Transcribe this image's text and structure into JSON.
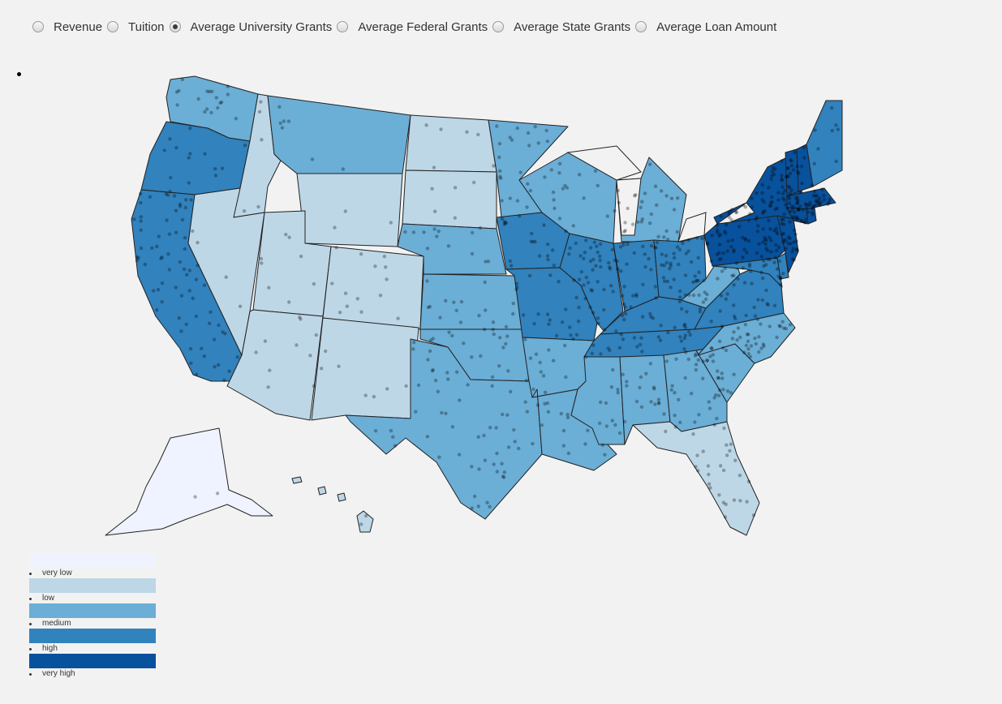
{
  "options": [
    {
      "label": "Revenue",
      "selected": false
    },
    {
      "label": "Tuition",
      "selected": false
    },
    {
      "label": "Average University Grants",
      "selected": true
    },
    {
      "label": "Average Federal Grants",
      "selected": false
    },
    {
      "label": "Average State Grants",
      "selected": false
    },
    {
      "label": "Average Loan Amount",
      "selected": false
    }
  ],
  "legend": [
    {
      "label": "very low",
      "color": "#eff3ff"
    },
    {
      "label": "low",
      "color": "#bdd7e7"
    },
    {
      "label": "medium",
      "color": "#6baed6"
    },
    {
      "label": "high",
      "color": "#3182bd"
    },
    {
      "label": "very high",
      "color": "#08519c"
    }
  ],
  "map": {
    "state_levels": {
      "WA": "medium",
      "OR": "high",
      "CA": "high",
      "ID": "low",
      "NV": "low",
      "MT": "medium",
      "WY": "low",
      "UT": "low",
      "AZ": "low",
      "CO": "low",
      "NM": "low",
      "ND": "low",
      "SD": "low",
      "NE": "medium",
      "KS": "medium",
      "OK": "medium",
      "TX": "medium",
      "MN": "medium",
      "IA": "high",
      "MO": "high",
      "AR": "medium",
      "LA": "medium",
      "WI": "medium",
      "IL": "high",
      "MS": "medium",
      "MI": "medium",
      "IN": "high",
      "OH": "high",
      "KY": "high",
      "TN": "high",
      "AL": "medium",
      "GA": "medium",
      "FL": "low",
      "SC": "medium",
      "NC": "medium",
      "VA": "high",
      "WV": "medium",
      "MD": "high",
      "PA": "very high",
      "NY": "very high",
      "NJ": "very high",
      "VT": "very high",
      "NH": "very high",
      "MA": "very high",
      "CT": "very high",
      "RI": "very high",
      "ME": "high",
      "DE": "high",
      "AK": "very low",
      "HI": "low"
    }
  }
}
